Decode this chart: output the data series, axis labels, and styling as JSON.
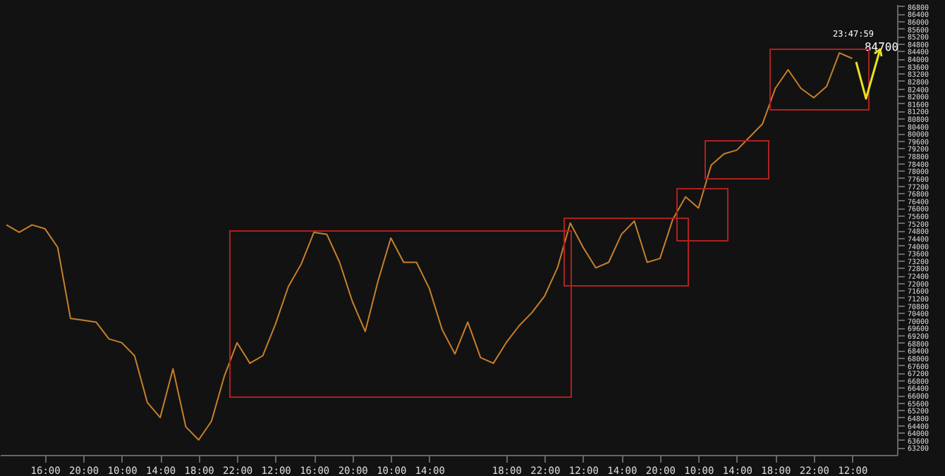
{
  "chart_data": {
    "type": "line",
    "categories": [
      null,
      null,
      null,
      "16:00",
      null,
      null,
      "20:00",
      null,
      null,
      "10:00",
      null,
      null,
      "14:00",
      null,
      null,
      "18:00",
      null,
      null,
      "22:00",
      null,
      null,
      "12:00",
      null,
      null,
      "16:00",
      null,
      null,
      "20:00",
      null,
      null,
      "10:00",
      null,
      null,
      "14:00",
      null,
      null,
      null,
      null,
      null,
      "18:00",
      null,
      null,
      "22:00",
      null,
      null,
      "12:00",
      null,
      null,
      "14:00",
      null,
      null,
      "20:00",
      null,
      null,
      "10:00",
      null,
      null,
      "14:00",
      null,
      null,
      "18:00",
      null,
      null,
      "22:00",
      null,
      null,
      "12:00",
      null,
      null,
      null
    ],
    "series": [
      {
        "color": "#c8802a",
        "values": [
          75100,
          74700,
          75100,
          74900,
          73900,
          70100,
          70000,
          69900,
          69000,
          68800,
          68100,
          65600,
          64800,
          67400,
          64300,
          63600,
          64600,
          67000,
          68800,
          67700,
          68100,
          69800,
          71800,
          73000,
          74700,
          74600,
          73100,
          71000,
          69400,
          72100,
          74400,
          73100,
          73100,
          71700,
          69500,
          68200,
          69900,
          68000,
          67700,
          68800,
          69700,
          70400,
          71300,
          72800,
          75200,
          73900,
          72800,
          73100,
          74600,
          75300,
          73100,
          73300,
          75400,
          76600,
          76000,
          78300,
          78900,
          79100,
          79800,
          80500,
          82400,
          83400,
          82400,
          81900,
          82500,
          84300,
          84000,
          null,
          null,
          null
        ]
      }
    ],
    "ylim": [
      62800,
      86900
    ],
    "yticks": [
      63200,
      63600,
      64000,
      64400,
      64800,
      65200,
      65600,
      66000,
      66400,
      66800,
      67200,
      67600,
      68000,
      68400,
      68800,
      69200,
      69600,
      70000,
      70400,
      70800,
      71200,
      71600,
      72000,
      72400,
      72800,
      73200,
      73600,
      74000,
      74400,
      74800,
      75200,
      75600,
      76000,
      76400,
      76800,
      77200,
      77600,
      78000,
      78400,
      78800,
      79200,
      79600,
      80000,
      80400,
      80800,
      81200,
      81600,
      82000,
      82400,
      82800,
      83200,
      83600,
      84000,
      84400,
      84800,
      85200,
      85600,
      86000,
      86400,
      86800
    ],
    "annotations": [
      "23:47:59",
      "84700"
    ],
    "grid": false,
    "marker": "none",
    "line_style": "solid"
  }
}
